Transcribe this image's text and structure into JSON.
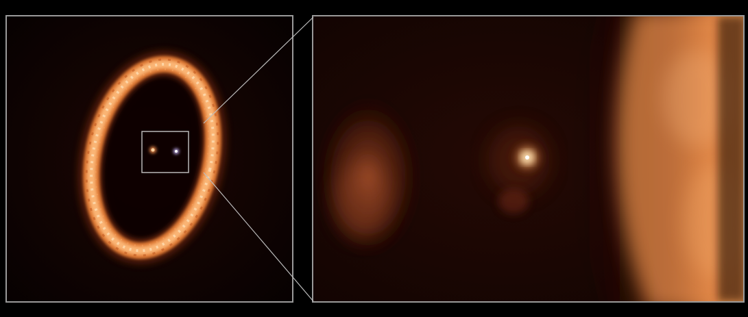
{
  "image": {
    "subject": "disk-zoom-composite",
    "colors": {
      "background": "#000000",
      "frame": "#9a9a9a",
      "ring_bright": "#ffc78a",
      "ring_mid": "#e07a35",
      "disk_dark": "#160503",
      "glow_warm": "#d9763a",
      "core": "#fff6dc"
    }
  }
}
